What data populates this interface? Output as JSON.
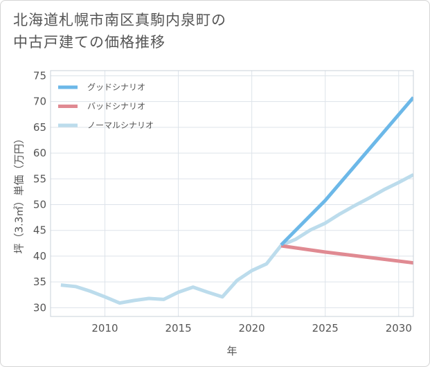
{
  "title_line1": "北海道札幌市南区真駒内泉町の",
  "title_line2": "中古戸建ての価格推移",
  "chart_data": {
    "type": "line",
    "xlabel": "年",
    "ylabel": "坪（3.3㎡）単価（万円）",
    "xlim": [
      2006.3,
      2031
    ],
    "ylim": [
      28.3,
      76
    ],
    "xticks": [
      2010,
      2015,
      2020,
      2025,
      2030
    ],
    "yticks": [
      30,
      35,
      40,
      45,
      50,
      55,
      60,
      65,
      70,
      75
    ],
    "grid": true,
    "legend_position": "top-left",
    "series": [
      {
        "name": "グッドシナリオ",
        "color": "#6cb8e8",
        "x": [
          2022,
          2025,
          2031
        ],
        "y": [
          42.2,
          50.8,
          70.8
        ]
      },
      {
        "name": "バッドシナリオ",
        "color": "#e08a92",
        "x": [
          2022,
          2025,
          2031
        ],
        "y": [
          42.0,
          40.8,
          38.7
        ]
      },
      {
        "name": "ノーマルシナリオ",
        "color": "#bcdcec",
        "x": [
          2007,
          2008,
          2009,
          2010,
          2011,
          2012,
          2013,
          2014,
          2015,
          2016,
          2017,
          2018,
          2019,
          2020,
          2021,
          2022,
          2023,
          2024,
          2025,
          2026,
          2027,
          2028,
          2029,
          2030,
          2031
        ],
        "y": [
          34.4,
          34.1,
          33.2,
          32.1,
          30.9,
          31.4,
          31.8,
          31.6,
          33.0,
          34.0,
          33.0,
          32.1,
          35.3,
          37.2,
          38.5,
          42.1,
          43.3,
          45.1,
          46.4,
          48.2,
          49.8,
          51.3,
          52.9,
          54.3,
          55.8
        ]
      }
    ]
  }
}
